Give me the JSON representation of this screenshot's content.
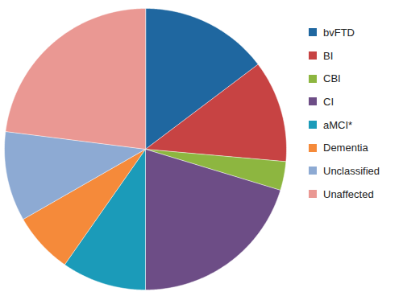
{
  "chart_data": {
    "type": "pie",
    "categories": [
      "bvFTD",
      "BI",
      "CBI",
      "CI",
      "aMCI*",
      "Dementia",
      "Unclassified",
      "Unaffected"
    ],
    "values": [
      14.7,
      11.7,
      3.3,
      20.3,
      9.7,
      7.0,
      10.3,
      23.0
    ],
    "colors": [
      "#1f67a0",
      "#c74343",
      "#8db640",
      "#6d4d86",
      "#1b9bb9",
      "#f58a3a",
      "#8daad3",
      "#ea9893"
    ],
    "legend": "right"
  }
}
